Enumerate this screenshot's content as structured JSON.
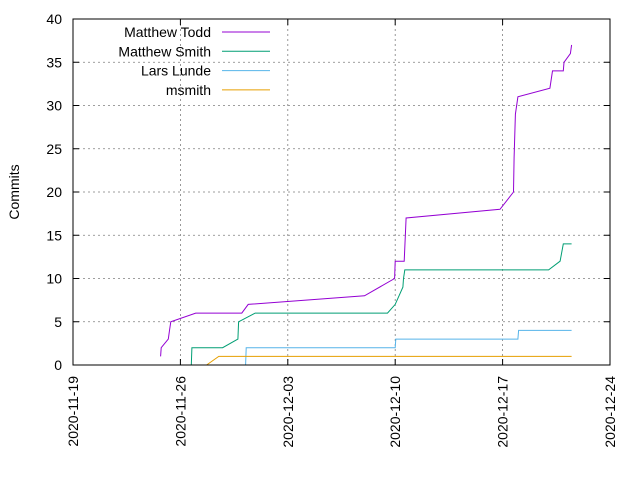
{
  "chart_data": {
    "type": "line",
    "ylabel": "Commits",
    "xlim": [
      "2020-11-19",
      "2020-12-24"
    ],
    "ylim": [
      0,
      40
    ],
    "x_ticks": [
      "2020-11-19",
      "2020-11-26",
      "2020-12-03",
      "2020-12-10",
      "2020-12-17",
      "2020-12-24"
    ],
    "y_ticks": [
      0,
      5,
      10,
      15,
      20,
      25,
      30,
      35,
      40
    ],
    "grid": true,
    "legend_position": "top-left",
    "series": [
      {
        "name": "Matthew Todd",
        "color": "#9400d3",
        "points": [
          [
            "2020-11-24T17:00",
            1
          ],
          [
            "2020-11-24T18:00",
            2
          ],
          [
            "2020-11-25T05:00",
            3
          ],
          [
            "2020-11-25T07:00",
            4
          ],
          [
            "2020-11-25T09:00",
            5
          ],
          [
            "2020-11-27T00:00",
            6
          ],
          [
            "2020-11-30T00:00",
            6
          ],
          [
            "2020-11-30T10:00",
            7
          ],
          [
            "2020-12-08T00:00",
            8
          ],
          [
            "2020-12-09T23:00",
            10
          ],
          [
            "2020-12-10T00:00",
            12
          ],
          [
            "2020-12-10T14:00",
            12
          ],
          [
            "2020-12-10T17:00",
            17
          ],
          [
            "2020-12-16T20:00",
            18
          ],
          [
            "2020-12-17T17:00",
            20
          ],
          [
            "2020-12-17T18:00",
            24
          ],
          [
            "2020-12-17T20:00",
            29
          ],
          [
            "2020-12-18T00:00",
            31
          ],
          [
            "2020-12-20T02:00",
            32
          ],
          [
            "2020-12-20T06:00",
            34
          ],
          [
            "2020-12-20T23:00",
            34
          ],
          [
            "2020-12-21T00:00",
            35
          ],
          [
            "2020-12-21T10:00",
            36
          ],
          [
            "2020-12-21T12:00",
            37
          ]
        ]
      },
      {
        "name": "Matthew Smith",
        "color": "#009e73",
        "points": [
          [
            "2020-11-26T17:00",
            0
          ],
          [
            "2020-11-26T18:00",
            2
          ],
          [
            "2020-11-28T18:00",
            2
          ],
          [
            "2020-11-29T18:00",
            3
          ],
          [
            "2020-11-29T19:00",
            5
          ],
          [
            "2020-11-30T21:00",
            6
          ],
          [
            "2020-12-09T12:00",
            6
          ],
          [
            "2020-12-10T00:00",
            7
          ],
          [
            "2020-12-10T12:00",
            9
          ],
          [
            "2020-12-10T13:00",
            10
          ],
          [
            "2020-12-10T15:00",
            11
          ],
          [
            "2020-12-20T00:00",
            11
          ],
          [
            "2020-12-20T18:00",
            12
          ],
          [
            "2020-12-20T23:00",
            14
          ],
          [
            "2020-12-21T12:00",
            14
          ]
        ]
      },
      {
        "name": "Lars Lunde",
        "color": "#56b4e9",
        "points": [
          [
            "2020-11-30T06:00",
            0
          ],
          [
            "2020-11-30T07:00",
            2
          ],
          [
            "2020-12-10T00:00",
            2
          ],
          [
            "2020-12-10T01:00",
            3
          ],
          [
            "2020-12-18T00:00",
            3
          ],
          [
            "2020-12-18T01:00",
            4
          ],
          [
            "2020-12-21T12:00",
            4
          ]
        ]
      },
      {
        "name": "msmith",
        "color": "#e69f00",
        "points": [
          [
            "2020-11-27T17:00",
            0
          ],
          [
            "2020-11-28T12:00",
            1
          ],
          [
            "2020-12-21T12:00",
            1
          ]
        ]
      }
    ]
  }
}
